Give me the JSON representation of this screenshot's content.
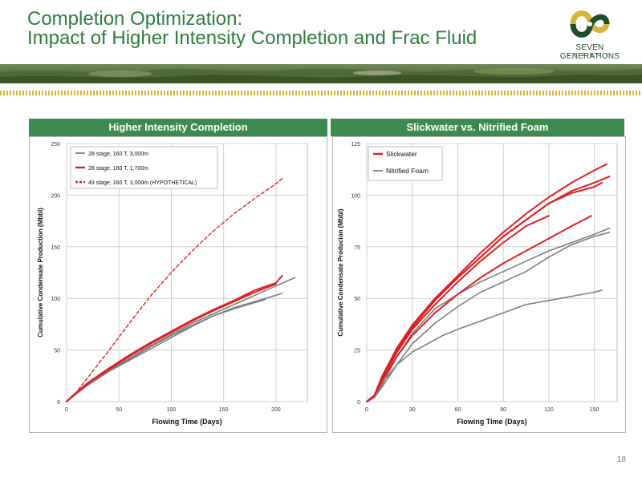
{
  "title": {
    "line1": "Completion Optimization:",
    "line2": "Impact of Higher Intensity Completion and Frac Fluid"
  },
  "logo": {
    "name": "SEVEN GENERATIONS",
    "sub": "ENERGY",
    "colors": {
      "gold": "#d8b43a",
      "green": "#1e4d2b"
    }
  },
  "colors": {
    "title": "#2f7d3f",
    "panel_header": "#3b8b4e",
    "red": "#e02020",
    "gray": "#7f7f7f"
  },
  "panels": {
    "left": {
      "header": "Higher Intensity Completion"
    },
    "right": {
      "header": "Slickwater vs. Nitrified Foam"
    }
  },
  "page_number": "18",
  "chart_data": [
    {
      "type": "line",
      "xlabel": "Flowing Time (Days)",
      "ylabel": "Cumulative Condensate Production (Mbbl)",
      "xlim": [
        0,
        230
      ],
      "ylim": [
        0,
        250
      ],
      "xticks": [
        0,
        50,
        100,
        150,
        200
      ],
      "yticks": [
        0,
        50,
        100,
        150,
        200,
        250
      ],
      "grid": true,
      "legend_position": "top-left",
      "series": [
        {
          "name": "28 stage, 160 T, 3,000m",
          "color": "#7f7f7f",
          "style": "solid",
          "legend": true,
          "x": [
            0,
            5,
            20,
            40,
            60,
            80,
            100,
            120,
            140,
            160,
            180,
            200,
            218
          ],
          "y": [
            0,
            4,
            17,
            30,
            42,
            54,
            65,
            76,
            85,
            94,
            103,
            112,
            120
          ]
        },
        {
          "name": "",
          "color": "#7f7f7f",
          "style": "solid",
          "legend": false,
          "x": [
            0,
            5,
            20,
            40,
            60,
            80,
            100,
            120,
            140,
            160,
            180,
            200,
            206
          ],
          "y": [
            0,
            4,
            16,
            29,
            40,
            51,
            62,
            73,
            83,
            91,
            97,
            103,
            105
          ]
        },
        {
          "name": "",
          "color": "#7f7f7f",
          "style": "solid",
          "legend": false,
          "x": [
            0,
            5,
            20,
            40,
            60,
            80,
            100,
            120,
            140,
            160,
            180,
            190
          ],
          "y": [
            0,
            4,
            16,
            29,
            41,
            53,
            64,
            74,
            83,
            90,
            96,
            99
          ]
        },
        {
          "name": "28 stage, 160 T, 1,700m",
          "color": "#e02020",
          "style": "solid",
          "legend": true,
          "x": [
            0,
            5,
            20,
            40,
            60,
            80,
            100,
            120,
            140,
            160,
            180,
            200,
            206
          ],
          "y": [
            0,
            5,
            18,
            32,
            45,
            57,
            68,
            79,
            89,
            98,
            108,
            115,
            122
          ]
        },
        {
          "name": "",
          "color": "#e02020",
          "style": "solid",
          "legend": false,
          "x": [
            0,
            5,
            20,
            40,
            60,
            80,
            100,
            120,
            140,
            160,
            180,
            200
          ],
          "y": [
            0,
            5,
            17,
            31,
            44,
            56,
            67,
            78,
            88,
            97,
            106,
            114
          ]
        },
        {
          "name": "49 stage, 160 T, 3,000m (HYPOTHETICAL)",
          "color": "#e02020",
          "style": "dashed",
          "legend": true,
          "x": [
            0,
            10,
            20,
            30,
            40,
            60,
            80,
            100,
            120,
            140,
            160,
            180,
            200,
            206
          ],
          "y": [
            0,
            10,
            23,
            36,
            49,
            76,
            102,
            125,
            146,
            165,
            182,
            197,
            211,
            216
          ]
        }
      ]
    },
    {
      "type": "line",
      "xlabel": "Flowing Time (Days)",
      "ylabel": "Cumulative Condensate Producion (Mbbl)",
      "xlim": [
        0,
        165
      ],
      "ylim": [
        0,
        125
      ],
      "xticks": [
        0,
        30,
        60,
        90,
        120,
        150
      ],
      "yticks": [
        0,
        25,
        50,
        75,
        100,
        125
      ],
      "grid": true,
      "legend_position": "top-left",
      "series": [
        {
          "name": "Slickwater",
          "color": "#e02020",
          "style": "solid",
          "legend": true,
          "x": [
            0,
            5,
            10,
            20,
            30,
            45,
            60,
            75,
            90,
            105,
            120,
            135,
            150,
            158
          ],
          "y": [
            0,
            3,
            12,
            26,
            37,
            50,
            61,
            72,
            82,
            91,
            99,
            106,
            112,
            115
          ]
        },
        {
          "name": "",
          "color": "#e02020",
          "style": "solid",
          "legend": false,
          "x": [
            0,
            5,
            10,
            20,
            30,
            45,
            60,
            75,
            90,
            105,
            120,
            135,
            150,
            160
          ],
          "y": [
            0,
            3,
            11,
            25,
            36,
            49,
            60,
            70,
            80,
            88,
            96,
            102,
            106,
            109
          ]
        },
        {
          "name": "",
          "color": "#e02020",
          "style": "solid",
          "legend": false,
          "x": [
            0,
            5,
            10,
            20,
            30,
            45,
            60,
            75,
            90,
            105,
            120,
            135,
            150,
            155
          ],
          "y": [
            0,
            3,
            12,
            26,
            37,
            50,
            60,
            70,
            80,
            88,
            96,
            101,
            104,
            106
          ]
        },
        {
          "name": "",
          "color": "#e02020",
          "style": "solid",
          "legend": false,
          "x": [
            0,
            5,
            10,
            20,
            30,
            45,
            60,
            75,
            90,
            105,
            120
          ],
          "y": [
            0,
            3,
            11,
            24,
            35,
            47,
            58,
            68,
            77,
            85,
            90
          ]
        },
        {
          "name": "",
          "color": "#e02020",
          "style": "solid",
          "legend": false,
          "x": [
            0,
            5,
            10,
            20,
            30,
            45,
            60,
            75,
            90,
            105,
            120,
            135,
            148
          ],
          "y": [
            0,
            3,
            10,
            22,
            32,
            43,
            52,
            60,
            67,
            73,
            79,
            85,
            90
          ]
        },
        {
          "name": "Nitrified Foam",
          "color": "#7f7f7f",
          "style": "solid",
          "legend": true,
          "x": [
            0,
            5,
            10,
            20,
            30,
            45,
            60,
            75,
            90,
            105,
            120,
            135,
            150,
            160
          ],
          "y": [
            0,
            2,
            8,
            22,
            33,
            45,
            52,
            58,
            63,
            68,
            73,
            77,
            81,
            84
          ]
        },
        {
          "name": "",
          "color": "#7f7f7f",
          "style": "solid",
          "legend": false,
          "x": [
            0,
            5,
            10,
            20,
            30,
            45,
            60,
            75,
            90,
            105,
            120,
            135,
            150,
            160
          ],
          "y": [
            0,
            2,
            7,
            18,
            28,
            38,
            46,
            53,
            58,
            63,
            70,
            76,
            80,
            82
          ]
        },
        {
          "name": "",
          "color": "#7f7f7f",
          "style": "solid",
          "legend": false,
          "x": [
            0,
            5,
            10,
            20,
            30,
            40,
            50,
            60,
            75,
            90,
            105,
            120,
            135,
            150,
            155
          ],
          "y": [
            0,
            2,
            9,
            18,
            24,
            28,
            32,
            35,
            39,
            43,
            47,
            49,
            51,
            53,
            54
          ]
        }
      ]
    }
  ]
}
